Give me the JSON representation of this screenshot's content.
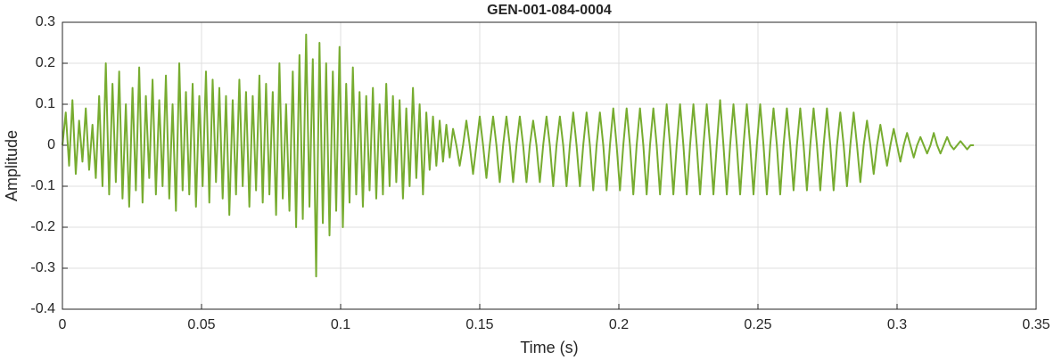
{
  "chart_data": {
    "type": "line",
    "title": "GEN-001-084-0004",
    "xlabel": "Time (s)",
    "ylabel": "Amplitude",
    "color": "#77ac30",
    "grid": true,
    "xlim": [
      0,
      0.35
    ],
    "ylim": [
      -0.4,
      0.3
    ],
    "xticks": [
      0,
      0.05,
      0.1,
      0.15,
      0.2,
      0.25,
      0.3,
      0.35
    ],
    "yticks": [
      -0.4,
      -0.3,
      -0.2,
      -0.1,
      0,
      0.1,
      0.2,
      0.3
    ],
    "x": [
      0,
      0.0012,
      0.0024,
      0.0036,
      0.0048,
      0.006,
      0.0072,
      0.0084,
      0.0096,
      0.0108,
      0.012,
      0.0132,
      0.0144,
      0.0156,
      0.0168,
      0.018,
      0.0192,
      0.0204,
      0.0216,
      0.0228,
      0.024,
      0.0252,
      0.0264,
      0.0276,
      0.0288,
      0.03,
      0.0312,
      0.0324,
      0.0336,
      0.0348,
      0.036,
      0.0372,
      0.0384,
      0.0396,
      0.0408,
      0.042,
      0.0432,
      0.0444,
      0.0456,
      0.0468,
      0.048,
      0.0492,
      0.0504,
      0.0516,
      0.0528,
      0.054,
      0.0552,
      0.0564,
      0.0576,
      0.0588,
      0.06,
      0.0612,
      0.0624,
      0.0636,
      0.0648,
      0.066,
      0.0672,
      0.0684,
      0.0696,
      0.0708,
      0.072,
      0.0732,
      0.0744,
      0.0756,
      0.0768,
      0.078,
      0.0792,
      0.0804,
      0.0816,
      0.0828,
      0.084,
      0.0852,
      0.0864,
      0.0876,
      0.0888,
      0.09,
      0.0912,
      0.0924,
      0.0936,
      0.0948,
      0.096,
      0.0972,
      0.0984,
      0.0996,
      0.1008,
      0.102,
      0.1032,
      0.1044,
      0.1056,
      0.1068,
      0.108,
      0.1092,
      0.1104,
      0.1116,
      0.1128,
      0.114,
      0.1152,
      0.1164,
      0.1176,
      0.1188,
      0.12,
      0.1212,
      0.1224,
      0.1236,
      0.1248,
      0.126,
      0.1272,
      0.1284,
      0.1296,
      0.1308,
      0.132,
      0.1332,
      0.1344,
      0.1356,
      0.1368,
      0.138,
      0.1392,
      0.1404,
      0.1416,
      0.1428,
      0.144,
      0.1452,
      0.1464,
      0.1476,
      0.1488,
      0.15,
      0.1512,
      0.1524,
      0.1536,
      0.1548,
      0.156,
      0.1572,
      0.1584,
      0.1596,
      0.1608,
      0.162,
      0.1632,
      0.1644,
      0.1656,
      0.1668,
      0.168,
      0.1692,
      0.1704,
      0.1716,
      0.1728,
      0.174,
      0.1752,
      0.1764,
      0.1776,
      0.1788,
      0.18,
      0.1812,
      0.1824,
      0.1836,
      0.1848,
      0.186,
      0.1872,
      0.1884,
      0.1896,
      0.1908,
      0.192,
      0.1932,
      0.1944,
      0.1956,
      0.1968,
      0.198,
      0.1992,
      0.2004,
      0.2016,
      0.2028,
      0.204,
      0.2052,
      0.2064,
      0.2076,
      0.2088,
      0.21,
      0.2112,
      0.2124,
      0.2136,
      0.2148,
      0.216,
      0.2172,
      0.2184,
      0.2196,
      0.2208,
      0.222,
      0.2232,
      0.2244,
      0.2256,
      0.2268,
      0.228,
      0.2292,
      0.2304,
      0.2316,
      0.2328,
      0.234,
      0.2352,
      0.2364,
      0.2376,
      0.2388,
      0.24,
      0.2412,
      0.2424,
      0.2436,
      0.2448,
      0.246,
      0.2472,
      0.2484,
      0.2496,
      0.2508,
      0.252,
      0.2532,
      0.2544,
      0.2556,
      0.2568,
      0.258,
      0.2592,
      0.2604,
      0.2616,
      0.2628,
      0.264,
      0.2652,
      0.2664,
      0.2676,
      0.2688,
      0.27,
      0.2712,
      0.2724,
      0.2736,
      0.2748,
      0.276,
      0.2772,
      0.2784,
      0.2796,
      0.2808,
      0.282,
      0.2832,
      0.2844,
      0.2856,
      0.2868,
      0.288,
      0.2892,
      0.2904,
      0.2916,
      0.2928,
      0.294,
      0.2952,
      0.2964,
      0.2976,
      0.2988,
      0.3,
      0.3012,
      0.3024,
      0.3036,
      0.3048,
      0.306,
      0.3072,
      0.3084,
      0.3096,
      0.3108,
      0.312,
      0.3132,
      0.3144,
      0.3156,
      0.3168,
      0.318,
      0.3192,
      0.3204,
      0.3216,
      0.3228,
      0.324,
      0.3252,
      0.3264,
      0.3276
    ],
    "values": [
      0,
      0.08,
      -0.05,
      0.11,
      -0.07,
      0.06,
      -0.04,
      0.09,
      -0.06,
      0.05,
      -0.08,
      0.12,
      -0.1,
      0.2,
      -0.12,
      0.15,
      -0.09,
      0.18,
      -0.13,
      0.1,
      -0.15,
      0.14,
      -0.11,
      0.19,
      -0.14,
      0.12,
      -0.08,
      0.16,
      -0.12,
      0.11,
      -0.1,
      0.17,
      -0.13,
      0.1,
      -0.16,
      0.2,
      -0.11,
      0.13,
      -0.12,
      0.15,
      -0.15,
      0.12,
      -0.1,
      0.18,
      -0.14,
      0.16,
      -0.09,
      0.14,
      -0.13,
      0.12,
      -0.17,
      0.11,
      -0.12,
      0.16,
      -0.1,
      0.13,
      -0.15,
      0.12,
      -0.11,
      0.17,
      -0.14,
      0.15,
      -0.12,
      0.13,
      -0.17,
      0.2,
      -0.13,
      0.1,
      -0.16,
      0.18,
      -0.2,
      0.22,
      -0.18,
      0.27,
      -0.15,
      0.21,
      -0.32,
      0.25,
      -0.19,
      0.2,
      -0.22,
      0.18,
      -0.16,
      0.24,
      -0.2,
      0.15,
      -0.14,
      0.19,
      -0.12,
      0.13,
      -0.15,
      0.12,
      -0.11,
      0.14,
      -0.13,
      0.1,
      -0.12,
      0.15,
      -0.1,
      0.12,
      -0.09,
      0.11,
      -0.13,
      0.09,
      -0.1,
      0.14,
      -0.08,
      0.1,
      -0.12,
      0.08,
      -0.06,
      0.07,
      -0.05,
      0.06,
      -0.04,
      0.05,
      -0.03,
      0.04,
      0,
      -0.05,
      0,
      0.06,
      0,
      -0.07,
      0,
      0.07,
      0,
      -0.08,
      0,
      0.07,
      0,
      -0.09,
      0,
      0.07,
      0,
      -0.09,
      0,
      0.07,
      0,
      -0.09,
      0,
      0.06,
      0,
      -0.09,
      0,
      0.07,
      0,
      -0.1,
      0,
      0.07,
      0,
      -0.1,
      0,
      0.08,
      0,
      -0.1,
      0,
      0.08,
      0,
      -0.11,
      0,
      0.08,
      0,
      -0.11,
      0,
      0.09,
      0,
      -0.11,
      0,
      0.09,
      0,
      -0.12,
      0,
      0.09,
      0,
      -0.12,
      0,
      0.09,
      0,
      -0.12,
      0,
      0.1,
      0,
      -0.12,
      0,
      0.1,
      0,
      -0.12,
      0,
      0.1,
      0,
      -0.12,
      0,
      0.1,
      0,
      -0.12,
      0,
      0.11,
      0,
      -0.12,
      0,
      0.1,
      0,
      -0.12,
      0,
      0.1,
      0,
      -0.12,
      0,
      0.1,
      0,
      -0.12,
      0,
      0.09,
      0,
      -0.12,
      0,
      0.09,
      0,
      -0.11,
      0,
      0.09,
      0,
      -0.11,
      0,
      0.09,
      0,
      -0.11,
      0,
      0.09,
      0,
      -0.11,
      0,
      0.08,
      0,
      -0.1,
      0,
      0.08,
      0,
      -0.09,
      0,
      0.06,
      0,
      -0.07,
      0,
      0.05,
      0,
      -0.05,
      0,
      0.04,
      0,
      -0.04,
      0,
      0.03,
      0,
      -0.03,
      0,
      0.02,
      0,
      -0.02,
      0,
      0.03,
      0,
      -0.02,
      0,
      0.02,
      0,
      -0.01,
      0,
      0.01,
      0,
      -0.01,
      0,
      0
    ]
  }
}
